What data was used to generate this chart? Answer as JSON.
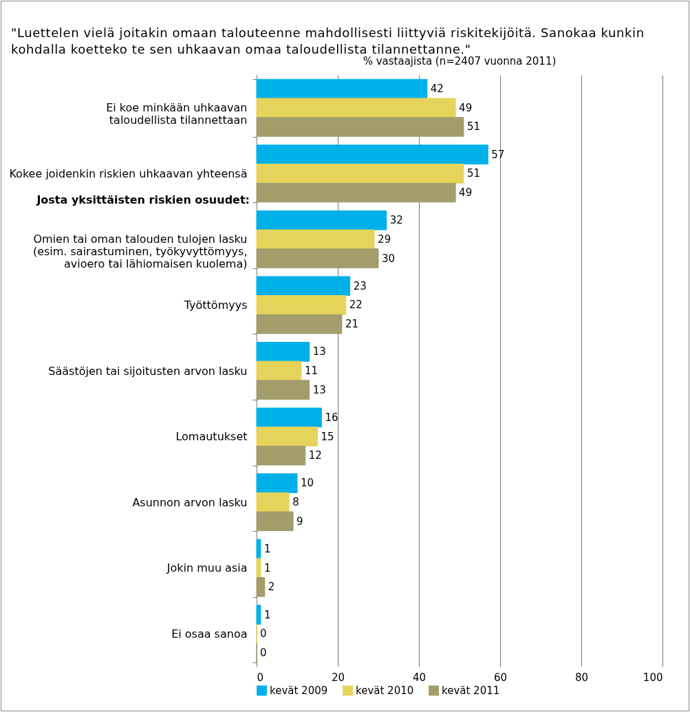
{
  "chart_data": {
    "type": "bar",
    "orientation": "horizontal",
    "title": "\"Luettelen vielä joitakin omaan talouteenne mahdollisesti liittyviä riskitekijöitä. Sanokaa kunkin kohdalla koetteko te sen uhkaavan omaa taloudellista tilannettanne.\"",
    "subtitle": "% vastaajista (n=2407 vuonna 2011)",
    "categories": [
      "Ei koe minkään uhkaavan\ntaloudellista tilannettaan",
      "Kokee joidenkin riskien uhkaavan yhteensä",
      "Omien tai oman talouden tulojen lasku\n(esim. sairastuminen, työkyvyttömyys,\navioero tai lähiomaisen kuolema)",
      "Työttömyys",
      "Säästöjen tai sijoitusten arvon lasku",
      "Lomautukset",
      "Asunnon arvon lasku",
      "Jokin muu asia",
      "Ei osaa sanoa"
    ],
    "series": [
      {
        "name": "kevät 2009",
        "color": "#00b0e8",
        "values": [
          42,
          57,
          32,
          23,
          13,
          16,
          10,
          1,
          1
        ]
      },
      {
        "name": "kevät 2010",
        "color": "#e6d45a",
        "values": [
          49,
          51,
          29,
          22,
          11,
          15,
          8,
          1,
          0
        ]
      },
      {
        "name": "kevät 2011",
        "color": "#a39d6c",
        "values": [
          51,
          49,
          30,
          21,
          13,
          12,
          9,
          2,
          0
        ]
      }
    ],
    "annotations": [
      "Josta yksittäisten riskien osuudet:"
    ],
    "xlim": [
      0,
      100
    ],
    "xticks": [
      0,
      20,
      40,
      60,
      80,
      100
    ],
    "grid": "x",
    "legend": "bottom",
    "data_labels": true
  }
}
